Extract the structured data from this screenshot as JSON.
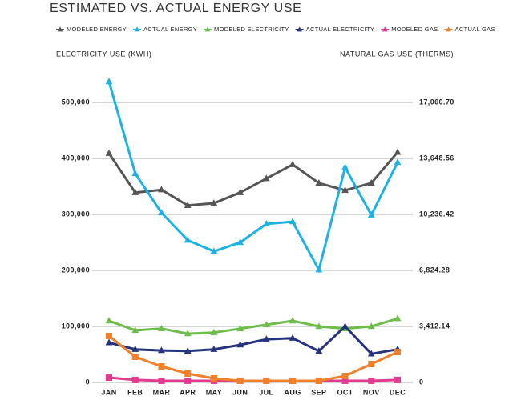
{
  "chart_data": {
    "type": "line",
    "title": "ESTIMATED VS. ACTUAL ENERGY USE",
    "y_label": "ELECTRICITY USE (KWH)",
    "y2_label": "NATURAL GAS USE (THERMS)",
    "categories": [
      "JAN",
      "FEB",
      "MAR",
      "APR",
      "MAY",
      "JUN",
      "JUL",
      "AUG",
      "SEP",
      "OCT",
      "NOV",
      "DEC"
    ],
    "ylim": [
      0,
      550000
    ],
    "yticks": [
      0,
      {
        "value": 100000,
        "label": "100,000"
      },
      {
        "value": 200000,
        "label": "200,000"
      },
      {
        "value": 300000,
        "label": "300,000"
      },
      {
        "value": 400000,
        "label": "400,000"
      },
      {
        "value": 500000,
        "label": "500,000"
      }
    ],
    "y2lim": [
      0,
      18766.77
    ],
    "y2ticks": [
      0,
      {
        "value": 3412.14,
        "label": "3,412.14"
      },
      {
        "value": 6824.28,
        "label": "6,824.28"
      },
      {
        "value": 10236.42,
        "label": "10,236.42"
      },
      {
        "value": 13648.56,
        "label": "13,648.56"
      },
      {
        "value": 17060.7,
        "label": "17,060.70"
      }
    ],
    "grid": true,
    "series": [
      {
        "name": "MODELED ENERGY",
        "color": "#555555",
        "marker": "triangle",
        "values": [
          409000,
          339000,
          344000,
          316000,
          320000,
          339000,
          364000,
          389000,
          356000,
          343000,
          356000,
          411000
        ]
      },
      {
        "name": "ACTUAL ENERGY",
        "color": "#1eb1e3",
        "marker": "triangle",
        "values": [
          537000,
          373000,
          303000,
          254000,
          234000,
          250000,
          283000,
          287000,
          201000,
          384000,
          299000,
          393000
        ]
      },
      {
        "name": "MODELED ELECTRICITY",
        "color": "#6cbd4a",
        "marker": "triangle",
        "values": [
          110000,
          93000,
          96000,
          87000,
          89000,
          96000,
          103000,
          110000,
          100000,
          96000,
          100000,
          114000
        ]
      },
      {
        "name": "ACTUAL ELECTRICITY",
        "color": "#26337e",
        "marker": "triangle",
        "values": [
          71000,
          59000,
          57000,
          56000,
          59000,
          67000,
          77000,
          79000,
          56000,
          100000,
          51000,
          59000
        ]
      },
      {
        "name": "MODELED GAS",
        "color": "#e23a8e",
        "marker": "square",
        "axis": "y2",
        "values": [
          290,
          150,
          100,
          100,
          100,
          100,
          100,
          100,
          100,
          100,
          100,
          150
        ]
      },
      {
        "name": "ACTUAL GAS",
        "color": "#f0812b",
        "marker": "square",
        "axis": "y2",
        "values": [
          2830,
          1560,
          975,
          536,
          244,
          100,
          100,
          100,
          100,
          390,
          1120,
          1850
        ]
      }
    ]
  }
}
